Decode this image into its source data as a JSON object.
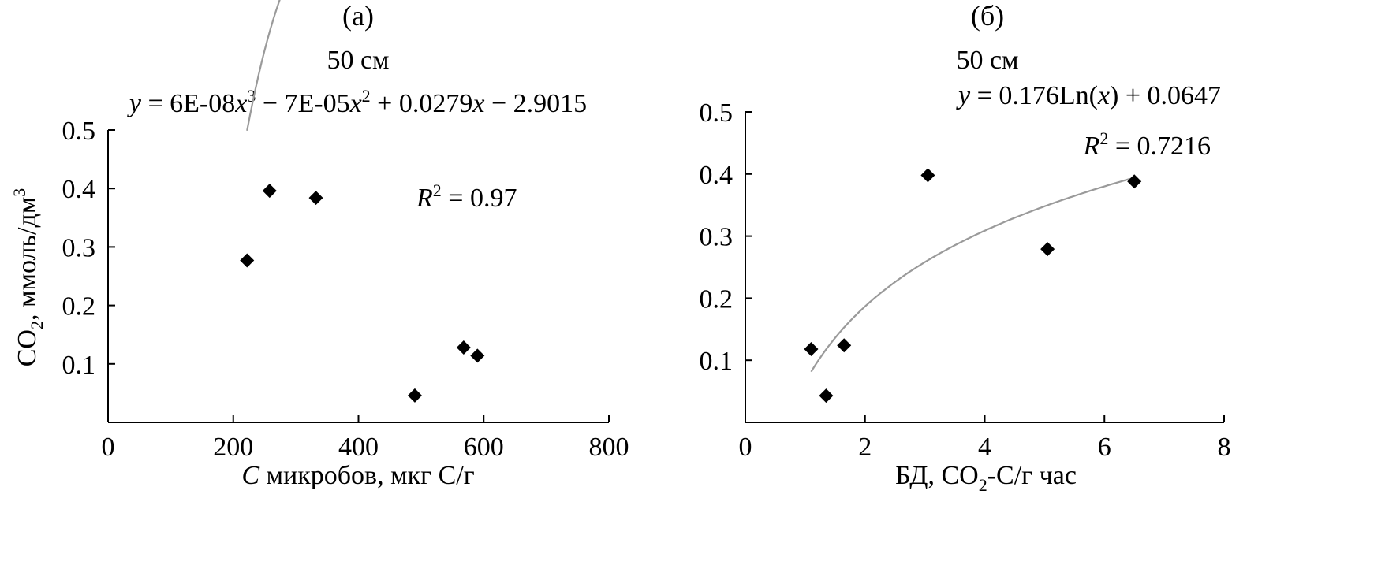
{
  "chart_data": [
    {
      "type": "scatter",
      "panel_label": "(а)",
      "title": "50 см",
      "equation_parts": [
        "y",
        " = 6E-08",
        "x",
        "3",
        " − 7E-05",
        "x",
        "2",
        " + 0.0279",
        "x",
        " − 2.9015"
      ],
      "r2_parts": [
        "R",
        "2",
        " = 0.97"
      ],
      "xlabel_parts": [
        "C",
        " микробов, мкг C/г"
      ],
      "ylabel_parts": [
        "CO",
        "2",
        ",  ммоль/дм",
        "3"
      ],
      "xlim": [
        0,
        800
      ],
      "ylim": [
        0,
        0.5
      ],
      "x_ticks": [
        "0",
        "200",
        "400",
        "600",
        "800"
      ],
      "x_tick_values": [
        0,
        200,
        400,
        600,
        800
      ],
      "y_ticks": [
        "0.1",
        "0.2",
        "0.3",
        "0.4",
        "0.5"
      ],
      "y_tick_values": [
        0.1,
        0.2,
        0.3,
        0.4,
        0.5
      ],
      "points": [
        {
          "x": 222,
          "y": 0.277
        },
        {
          "x": 258,
          "y": 0.396
        },
        {
          "x": 332,
          "y": 0.384
        },
        {
          "x": 490,
          "y": 0.046
        },
        {
          "x": 568,
          "y": 0.128
        },
        {
          "x": 590,
          "y": 0.114
        }
      ],
      "trendline": {
        "kind": "polynomial",
        "coefficients": [
          -2.9015,
          0.0279,
          -7e-05,
          6e-08
        ],
        "x_range": [
          222,
          595
        ]
      },
      "grid": false,
      "marker": "diamond",
      "marker_color": "#000000",
      "trend_color": "#9a9a9a"
    },
    {
      "type": "scatter",
      "panel_label": "(б)",
      "title": "50 см",
      "equation_parts": [
        "y",
        " = 0.176Ln(",
        "x",
        ") + 0.0647"
      ],
      "r2_parts": [
        "R",
        "2",
        " = 0.7216"
      ],
      "xlabel_parts": [
        "БД, CO",
        "2",
        "-C/г час"
      ],
      "xlim": [
        0,
        8
      ],
      "ylim": [
        0,
        0.5
      ],
      "x_ticks": [
        "0",
        "2",
        "4",
        "6",
        "8"
      ],
      "x_tick_values": [
        0,
        2,
        4,
        6,
        8
      ],
      "y_ticks": [
        "0.1",
        "0.2",
        "0.3",
        "0.4",
        "0.5"
      ],
      "y_tick_values": [
        0.1,
        0.2,
        0.3,
        0.4,
        0.5
      ],
      "points": [
        {
          "x": 1.1,
          "y": 0.118
        },
        {
          "x": 1.35,
          "y": 0.043
        },
        {
          "x": 1.65,
          "y": 0.124
        },
        {
          "x": 3.05,
          "y": 0.398
        },
        {
          "x": 5.05,
          "y": 0.279
        },
        {
          "x": 6.5,
          "y": 0.388
        }
      ],
      "trendline": {
        "kind": "logarithmic",
        "a": 0.176,
        "b": 0.0647,
        "x_range": [
          1.1,
          6.5
        ]
      },
      "grid": false,
      "marker": "diamond",
      "marker_color": "#000000",
      "trend_color": "#9a9a9a"
    }
  ]
}
